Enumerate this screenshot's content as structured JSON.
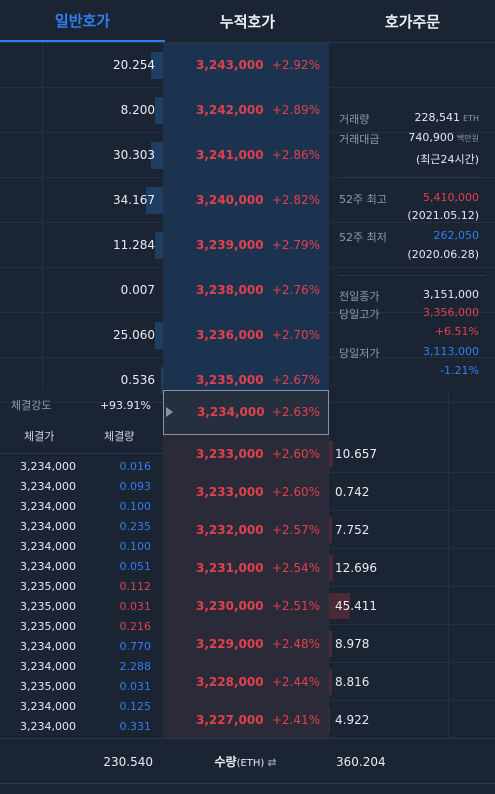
{
  "tabs": [
    {
      "label": "일반호가",
      "active": true
    },
    {
      "label": "누적호가",
      "active": false
    },
    {
      "label": "호가주문",
      "active": false
    }
  ],
  "asks": [
    {
      "size": "20.254",
      "fill": 0.1,
      "price": "3,243,000",
      "change": "+2.92%"
    },
    {
      "size": "8.200",
      "fill": 0.07,
      "price": "3,242,000",
      "change": "+2.89%"
    },
    {
      "size": "30.303",
      "fill": 0.1,
      "price": "3,241,000",
      "change": "+2.86%"
    },
    {
      "size": "34.167",
      "fill": 0.14,
      "price": "3,240,000",
      "change": "+2.82%"
    },
    {
      "size": "11.284",
      "fill": 0.07,
      "price": "3,239,000",
      "change": "+2.79%"
    },
    {
      "size": "0.007",
      "fill": 0.0,
      "price": "3,238,000",
      "change": "+2.76%"
    },
    {
      "size": "25.060",
      "fill": 0.07,
      "price": "3,236,000",
      "change": "+2.70%"
    },
    {
      "size": "0.536",
      "fill": 0.02,
      "price": "3,235,000",
      "change": "+2.67%"
    }
  ],
  "current": {
    "price": "3,234,000",
    "change": "+2.63%"
  },
  "bids": [
    {
      "size": "10.657",
      "fill": 0.04,
      "price": "3,233,000",
      "change": "+2.60%"
    },
    {
      "size": "0.742",
      "fill": 0.0,
      "price": "3,233,000",
      "change": "+2.60%"
    },
    {
      "size": "7.752",
      "fill": 0.03,
      "price": "3,232,000",
      "change": "+2.57%"
    },
    {
      "size": "12.696",
      "fill": 0.04,
      "price": "3,231,000",
      "change": "+2.54%"
    },
    {
      "size": "45.411",
      "fill": 0.18,
      "price": "3,230,000",
      "change": "+2.51%"
    },
    {
      "size": "8.978",
      "fill": 0.03,
      "price": "3,229,000",
      "change": "+2.48%"
    },
    {
      "size": "8.816",
      "fill": 0.03,
      "price": "3,228,000",
      "change": "+2.44%"
    },
    {
      "size": "4.922",
      "fill": 0.02,
      "price": "3,227,000",
      "change": "+2.41%"
    }
  ],
  "market_info": {
    "volume_label": "거래량",
    "volume_value": "228,541",
    "volume_unit": "ETH",
    "amount_label": "거래대금",
    "amount_value": "740,900",
    "amount_unit": "백만원",
    "period_note": "(최근24시간)",
    "high52_label": "52주 최고",
    "high52_value": "5,410,000",
    "high52_date": "(2021.05.12)",
    "low52_label": "52주 최저",
    "low52_value": "262,050",
    "low52_date": "(2020.06.28)",
    "prev_close_label": "전일종가",
    "prev_close_value": "3,151,000",
    "day_high_label": "당일고가",
    "day_high_value": "3,356,000",
    "day_high_change": "+6.51%",
    "day_low_label": "당일저가",
    "day_low_value": "3,113,000",
    "day_low_change": "-1.21%"
  },
  "strength": {
    "label": "체결강도",
    "value": "+93.91%"
  },
  "trades_header": {
    "price": "체결가",
    "volume": "체결량"
  },
  "trades": [
    {
      "price": "3,234,000",
      "volume": "0.016",
      "side": "buy"
    },
    {
      "price": "3,234,000",
      "volume": "0.093",
      "side": "buy"
    },
    {
      "price": "3,234,000",
      "volume": "0.100",
      "side": "buy"
    },
    {
      "price": "3,234,000",
      "volume": "0.235",
      "side": "buy"
    },
    {
      "price": "3,234,000",
      "volume": "0.100",
      "side": "buy"
    },
    {
      "price": "3,234,000",
      "volume": "0.051",
      "side": "buy"
    },
    {
      "price": "3,235,000",
      "volume": "0.112",
      "side": "sell"
    },
    {
      "price": "3,235,000",
      "volume": "0.031",
      "side": "sell"
    },
    {
      "price": "3,235,000",
      "volume": "0.216",
      "side": "sell"
    },
    {
      "price": "3,234,000",
      "volume": "0.770",
      "side": "buy"
    },
    {
      "price": "3,234,000",
      "volume": "2.288",
      "side": "buy"
    },
    {
      "price": "3,235,000",
      "volume": "0.031",
      "side": "buy"
    },
    {
      "price": "3,234,000",
      "volume": "0.125",
      "side": "buy"
    },
    {
      "price": "3,234,000",
      "volume": "0.331",
      "side": "buy"
    }
  ],
  "footer": {
    "total_ask": "230.540",
    "qty_label": "수량",
    "qty_unit": "(ETH)",
    "swap_icon": "⇄",
    "total_bid": "360.204"
  },
  "colors": {
    "up": "#e0414d",
    "down": "#2f7ff0",
    "accent": "#2f7ff0"
  }
}
